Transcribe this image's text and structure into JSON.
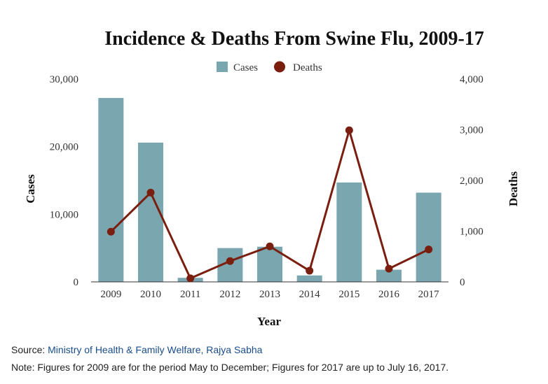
{
  "chart_data": {
    "type": "bar",
    "title": "Incidence & Deaths From Swine Flu, 2009-17",
    "xlabel": "Year",
    "ylabel": "Cases",
    "y2label": "Deaths",
    "categories": [
      "2009",
      "2010",
      "2011",
      "2012",
      "2013",
      "2014",
      "2015",
      "2016",
      "2017"
    ],
    "series": [
      {
        "name": "Cases",
        "type": "bar",
        "axis": "left",
        "color": "#7aa6b0",
        "values": [
          27200,
          20600,
          600,
          5000,
          5200,
          950,
          14700,
          1800,
          13200
        ]
      },
      {
        "name": "Deaths",
        "type": "line",
        "axis": "right",
        "color": "#7a1e0f",
        "values": [
          990,
          1760,
          70,
          410,
          700,
          220,
          2990,
          260,
          640
        ]
      }
    ],
    "ylim": [
      0,
      30000
    ],
    "y2lim": [
      0,
      4000
    ],
    "yticks": [
      "0",
      "10,000",
      "20,000",
      "30,000"
    ],
    "yticks_values": [
      0,
      10000,
      20000,
      30000
    ],
    "y2ticks": [
      "0",
      "1,000",
      "2,000",
      "3,000",
      "4,000"
    ],
    "y2ticks_values": [
      0,
      1000,
      2000,
      3000,
      4000
    ],
    "legend_position": "top-center",
    "grid": false
  },
  "footer": {
    "source_label": "Source: ",
    "source_link": "Ministry of Health & Family Welfare, Rajya Sabha",
    "note": "Note: Figures for 2009 are for the period May to December; Figures for 2017 are up to July 16, 2017."
  }
}
